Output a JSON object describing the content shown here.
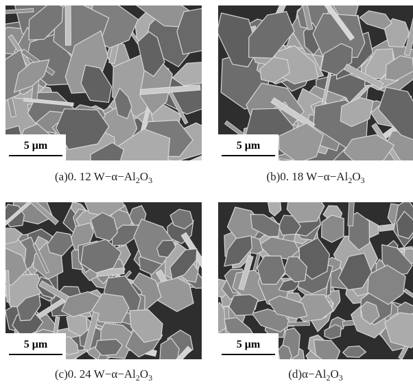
{
  "panels": [
    {
      "scale_bar": "5 μm",
      "caption": [
        {
          "text": "(a)0. 12 W−α−Al"
        },
        {
          "text": "2",
          "sub": true
        },
        {
          "text": "O"
        },
        {
          "text": "3",
          "sub": true
        }
      ]
    },
    {
      "scale_bar": "5 μm",
      "caption": [
        {
          "text": "(b)0. 18 W−α−Al"
        },
        {
          "text": "2",
          "sub": true
        },
        {
          "text": "O"
        },
        {
          "text": "3",
          "sub": true
        }
      ]
    },
    {
      "scale_bar": "5 μm",
      "caption": [
        {
          "text": "(c)0. 24 W−α−Al"
        },
        {
          "text": "2",
          "sub": true
        },
        {
          "text": "O"
        },
        {
          "text": "3",
          "sub": true
        }
      ]
    },
    {
      "scale_bar": "5 μm",
      "caption": [
        {
          "text": "(d)α−Al"
        },
        {
          "text": "2",
          "sub": true
        },
        {
          "text": "O"
        },
        {
          "text": "3",
          "sub": true
        }
      ]
    }
  ]
}
